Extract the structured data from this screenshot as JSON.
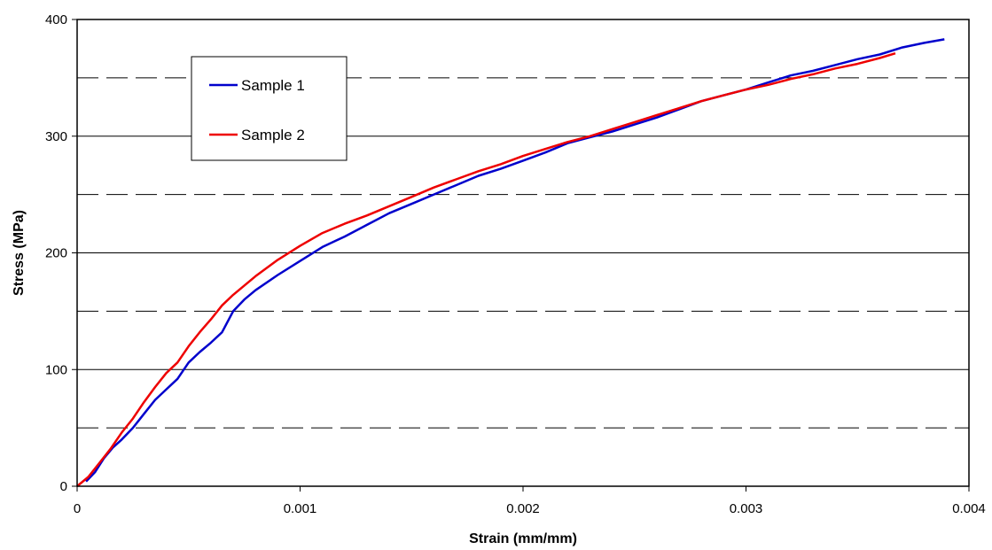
{
  "chart_data": {
    "type": "line",
    "title": "",
    "xlabel": "Strain (mm/mm)",
    "ylabel": "Stress (MPa)",
    "xlim": [
      0,
      0.004
    ],
    "ylim": [
      0,
      400
    ],
    "x_ticks": [
      0,
      0.001,
      0.002,
      0.003,
      0.004
    ],
    "x_tick_labels": [
      "0",
      "0.001",
      "0.002",
      "0.003",
      "0.004"
    ],
    "y_ticks": [
      0,
      100,
      200,
      300,
      400
    ],
    "y_tick_labels": [
      "0",
      "100",
      "200",
      "300",
      "400"
    ],
    "major_grid_y": [
      100,
      200,
      300
    ],
    "minor_dashed_grid_y": [
      50,
      150,
      250,
      350
    ],
    "legend_placement": "top-left",
    "series": [
      {
        "name": "Sample 1",
        "color": "#0000cc",
        "points": [
          [
            4e-05,
            4
          ],
          [
            8e-05,
            12
          ],
          [
            0.00012,
            24
          ],
          [
            0.00016,
            33
          ],
          [
            0.0002,
            40
          ],
          [
            0.00025,
            50
          ],
          [
            0.0003,
            62
          ],
          [
            0.00035,
            74
          ],
          [
            0.0004,
            83
          ],
          [
            0.00045,
            92
          ],
          [
            0.0005,
            106
          ],
          [
            0.00055,
            115
          ],
          [
            0.0006,
            123
          ],
          [
            0.00065,
            132
          ],
          [
            0.0007,
            150
          ],
          [
            0.00075,
            160
          ],
          [
            0.0008,
            168
          ],
          [
            0.0009,
            181
          ],
          [
            0.001,
            193
          ],
          [
            0.0011,
            205
          ],
          [
            0.0012,
            214
          ],
          [
            0.0013,
            224
          ],
          [
            0.0014,
            234
          ],
          [
            0.0015,
            242
          ],
          [
            0.0016,
            250
          ],
          [
            0.0017,
            258
          ],
          [
            0.0018,
            266
          ],
          [
            0.0019,
            272
          ],
          [
            0.002,
            279
          ],
          [
            0.0021,
            286
          ],
          [
            0.0022,
            294
          ],
          [
            0.0023,
            299
          ],
          [
            0.0024,
            304
          ],
          [
            0.0025,
            310
          ],
          [
            0.0026,
            316
          ],
          [
            0.0027,
            323
          ],
          [
            0.0028,
            330
          ],
          [
            0.0029,
            335
          ],
          [
            0.003,
            340
          ],
          [
            0.0031,
            346
          ],
          [
            0.0032,
            352
          ],
          [
            0.0033,
            356
          ],
          [
            0.0034,
            361
          ],
          [
            0.0035,
            366
          ],
          [
            0.0036,
            370
          ],
          [
            0.0037,
            376
          ],
          [
            0.0038,
            380
          ],
          [
            0.00389,
            383
          ]
        ]
      },
      {
        "name": "Sample 2",
        "color": "#ee0000",
        "points": [
          [
            0.0,
            0
          ],
          [
            5e-05,
            8
          ],
          [
            0.0001,
            20
          ],
          [
            0.00015,
            32
          ],
          [
            0.0002,
            46
          ],
          [
            0.00025,
            58
          ],
          [
            0.0003,
            72
          ],
          [
            0.00035,
            85
          ],
          [
            0.0004,
            97
          ],
          [
            0.00045,
            106
          ],
          [
            0.0005,
            120
          ],
          [
            0.00055,
            132
          ],
          [
            0.0006,
            143
          ],
          [
            0.00065,
            155
          ],
          [
            0.0007,
            164
          ],
          [
            0.00075,
            172
          ],
          [
            0.0008,
            180
          ],
          [
            0.0009,
            194
          ],
          [
            0.001,
            206
          ],
          [
            0.0011,
            217
          ],
          [
            0.0012,
            225
          ],
          [
            0.0013,
            232
          ],
          [
            0.0014,
            240
          ],
          [
            0.0015,
            248
          ],
          [
            0.0016,
            256
          ],
          [
            0.0017,
            263
          ],
          [
            0.0018,
            270
          ],
          [
            0.0019,
            276
          ],
          [
            0.002,
            283
          ],
          [
            0.0021,
            289
          ],
          [
            0.0022,
            295
          ],
          [
            0.0023,
            300
          ],
          [
            0.0024,
            306
          ],
          [
            0.0025,
            312
          ],
          [
            0.0026,
            318
          ],
          [
            0.0027,
            324
          ],
          [
            0.0028,
            330
          ],
          [
            0.0029,
            335
          ],
          [
            0.003,
            340
          ],
          [
            0.0031,
            344
          ],
          [
            0.0032,
            349
          ],
          [
            0.0033,
            353
          ],
          [
            0.0034,
            358
          ],
          [
            0.0035,
            362
          ],
          [
            0.0036,
            367
          ],
          [
            0.00367,
            371
          ]
        ]
      }
    ]
  }
}
